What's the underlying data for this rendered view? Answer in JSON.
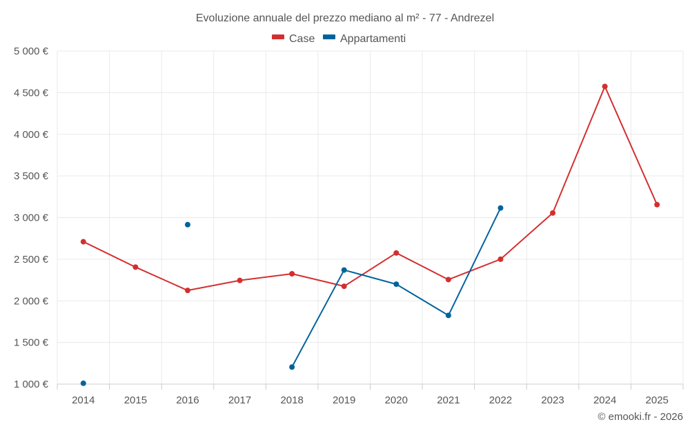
{
  "chart_data": {
    "type": "line",
    "title": "Evoluzione annuale del prezzo mediano al m² - 77 - Andrezel",
    "x": [
      2014,
      2015,
      2016,
      2017,
      2018,
      2019,
      2020,
      2021,
      2022,
      2023,
      2024,
      2025
    ],
    "x_tick_labels": [
      "2014",
      "2015",
      "2016",
      "2017",
      "2018",
      "2019",
      "2020",
      "2021",
      "2022",
      "2023",
      "2024",
      "2025"
    ],
    "y_tick_labels": [
      "1 000 €",
      "1 500 €",
      "2 000 €",
      "2 500 €",
      "3 000 €",
      "3 500 €",
      "4 000 €",
      "4 500 €",
      "5 000 €"
    ],
    "y_ticks": [
      1000,
      1500,
      2000,
      2500,
      3000,
      3500,
      4000,
      4500,
      5000
    ],
    "ylim": [
      1000,
      5000
    ],
    "grid": true,
    "legend_position": "top-center",
    "series": [
      {
        "name": "Case",
        "color": "#d32f2f",
        "values": [
          2710,
          2405,
          2125,
          2245,
          2325,
          2175,
          2575,
          2255,
          2500,
          3055,
          4575,
          3155
        ]
      },
      {
        "name": "Appartamenti",
        "color": "#00639b",
        "values": [
          1010,
          null,
          2915,
          null,
          1205,
          2370,
          2200,
          1825,
          3115,
          null,
          null,
          null
        ]
      }
    ],
    "credit": "© emooki.fr - 2026"
  }
}
